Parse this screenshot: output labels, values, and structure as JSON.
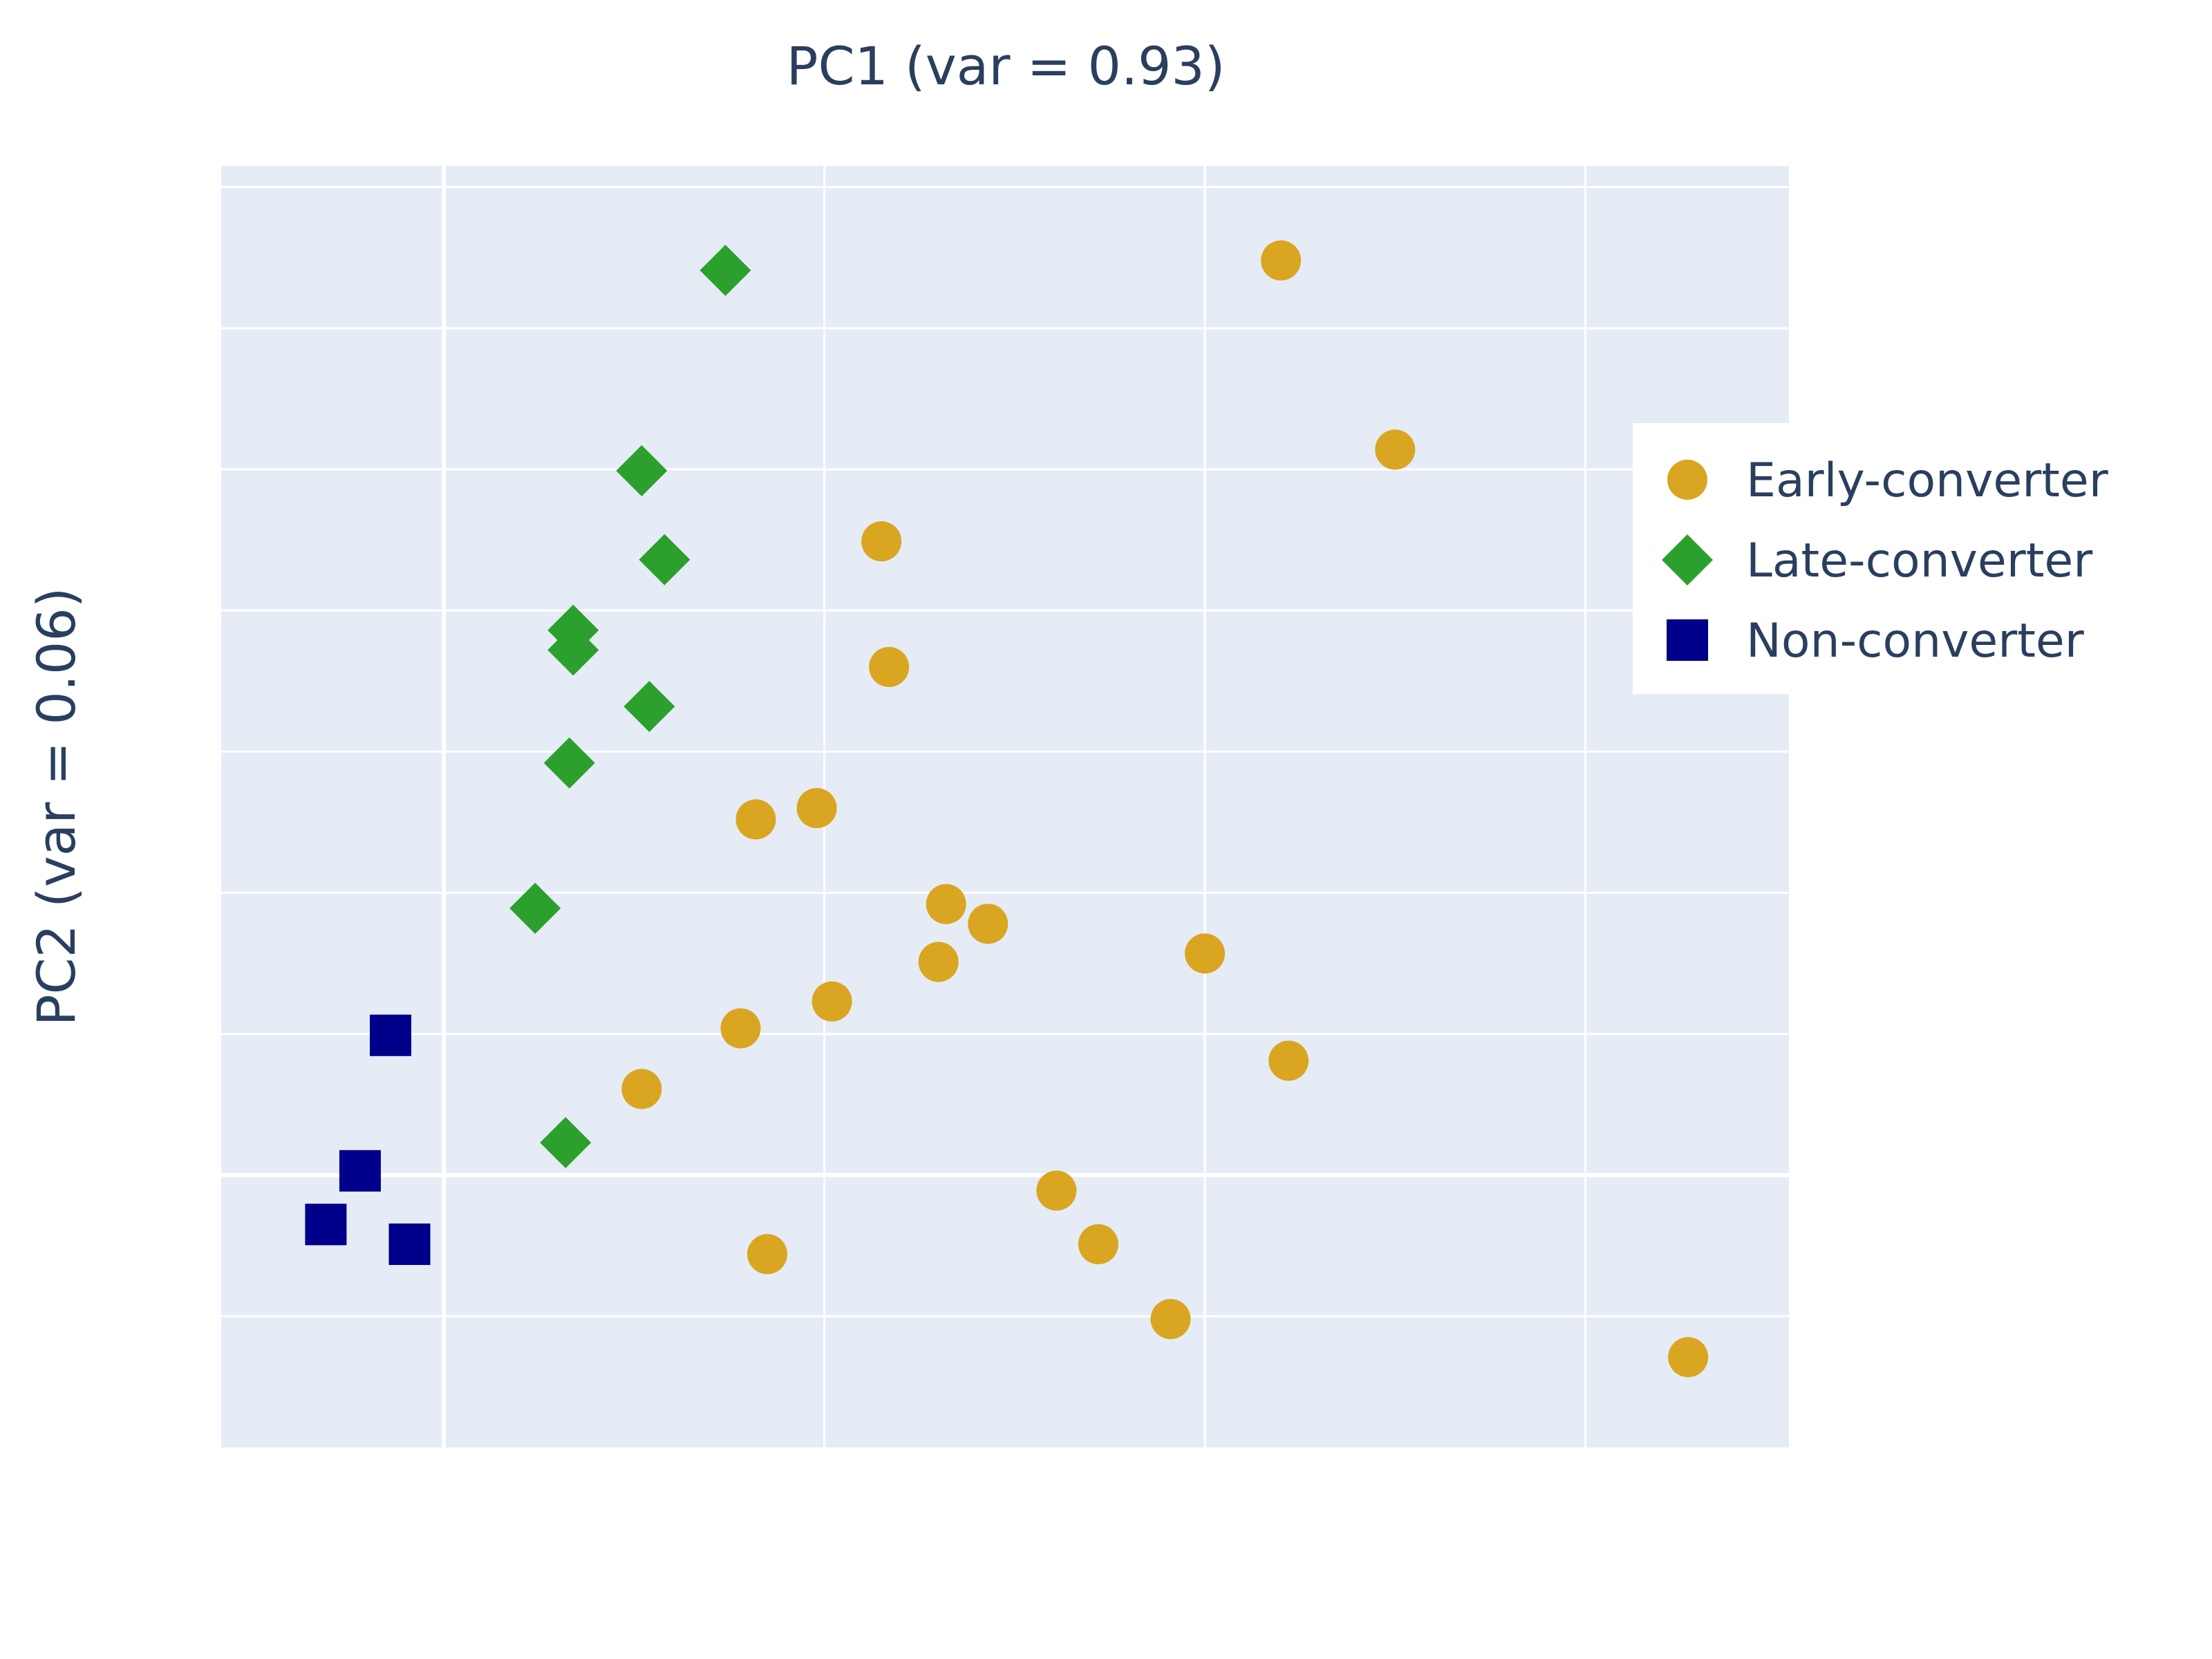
{
  "chart_data": {
    "type": "scatter",
    "title": "PC1 (var = 0.93)",
    "xlabel": "",
    "ylabel": "PC2 (var = 0.06)",
    "xlim": [
      -0.585,
      3.535
    ],
    "ylim": [
      -1.93,
      7.15
    ],
    "x_gridlines": [
      0,
      1,
      2,
      3
    ],
    "y_gridlines": [
      -1,
      0,
      1,
      2,
      3,
      4,
      5,
      6,
      7
    ],
    "tick_labels_visible": false,
    "plot_background": "#e5ecf6",
    "grid": true,
    "legend_position": "right",
    "series": [
      {
        "name": "Early-converter",
        "marker": "circle",
        "color": "#daa520",
        "x": [
          2.2,
          2.5,
          1.15,
          1.17,
          0.82,
          0.98,
          1.32,
          1.43,
          1.3,
          2.0,
          1.02,
          0.78,
          0.52,
          2.22,
          1.61,
          1.72,
          0.85,
          1.91,
          3.27
        ],
        "y": [
          6.48,
          5.14,
          4.49,
          3.6,
          2.52,
          2.6,
          1.92,
          1.78,
          1.51,
          1.57,
          1.23,
          1.04,
          0.61,
          0.81,
          -0.11,
          -0.49,
          -0.56,
          -1.02,
          -1.29
        ]
      },
      {
        "name": "Late-converter",
        "marker": "diamond",
        "color": "#2ca02c",
        "x": [
          0.74,
          0.52,
          0.58,
          0.34,
          0.34,
          0.54,
          0.33,
          0.24,
          0.32
        ],
        "y": [
          6.41,
          4.99,
          4.36,
          3.86,
          3.72,
          3.32,
          2.92,
          1.89,
          0.23
        ]
      },
      {
        "name": "Non-converter",
        "marker": "square",
        "color": "#00008b",
        "x": [
          -0.14,
          -0.22,
          -0.31,
          -0.09
        ],
        "y": [
          0.99,
          0.03,
          -0.35,
          -0.49
        ]
      }
    ]
  }
}
